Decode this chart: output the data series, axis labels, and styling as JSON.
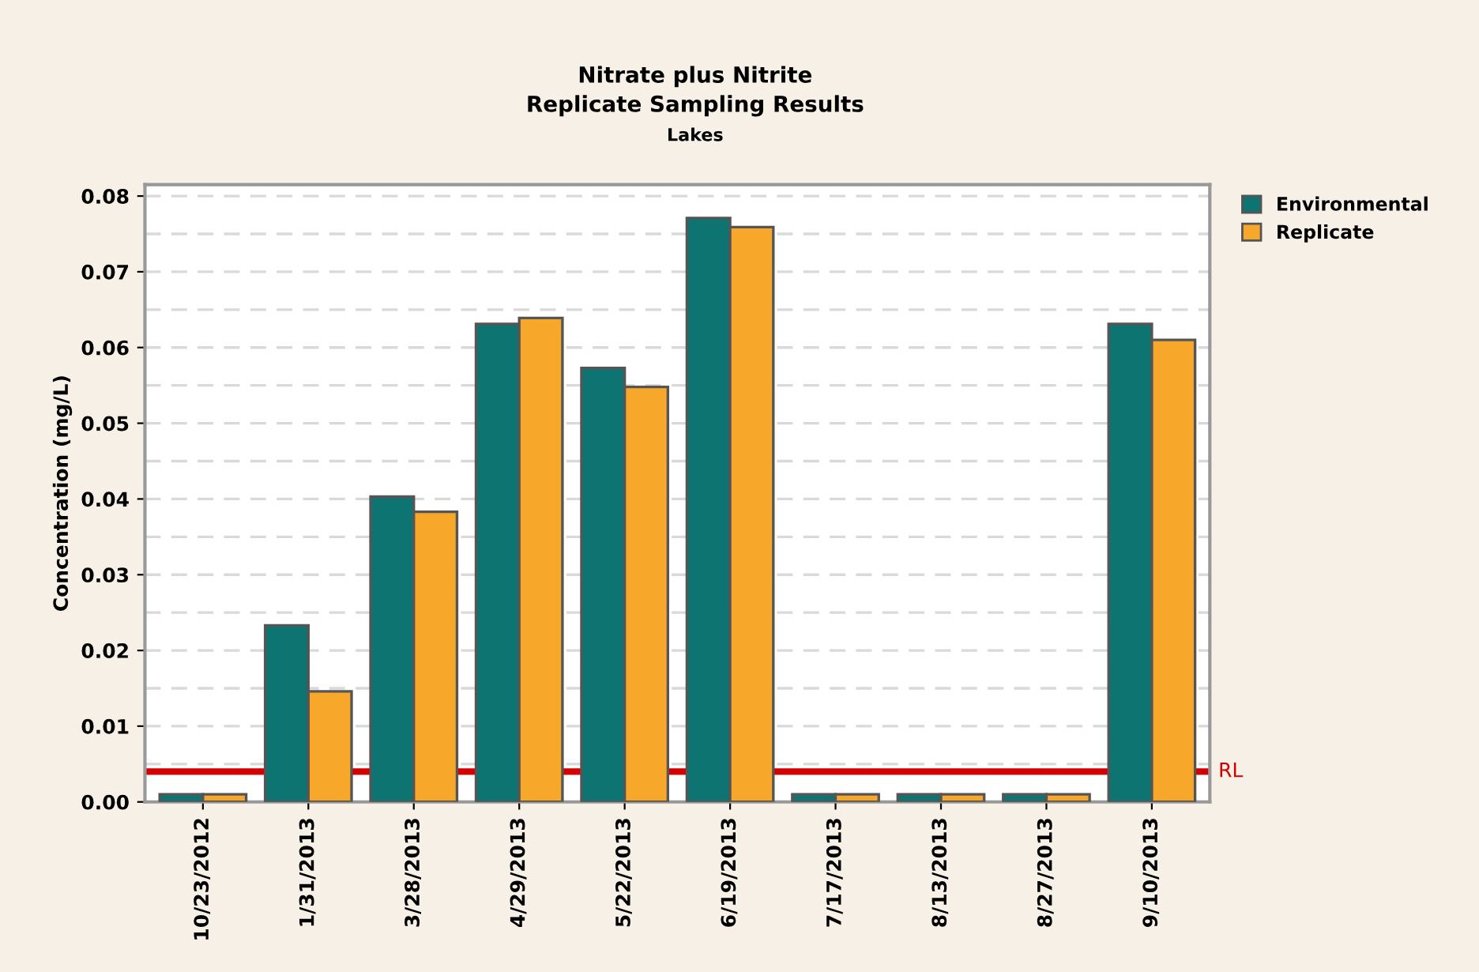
{
  "chart_data": {
    "type": "bar",
    "title": "Nitrate plus Nitrite",
    "subtitle": "Replicate Sampling Results",
    "annotations": [
      "Lakes"
    ],
    "ylabel": "Concentration (mg/L)",
    "categories": [
      "10/23/2012",
      "1/31/2013",
      "3/28/2013",
      "4/29/2013",
      "5/22/2013",
      "6/19/2013",
      "7/17/2013",
      "8/13/2013",
      "8/27/2013",
      "9/10/2013"
    ],
    "series": [
      {
        "name": "Environmental",
        "color": "#0e7472",
        "values": [
          0.001,
          0.0233,
          0.0403,
          0.0631,
          0.0573,
          0.0771,
          0.001,
          0.001,
          0.001,
          0.0631
        ]
      },
      {
        "name": "Replicate",
        "color": "#f7a72a",
        "values": [
          0.001,
          0.0146,
          0.0383,
          0.0639,
          0.0548,
          0.0759,
          0.001,
          0.001,
          0.001,
          0.061
        ]
      }
    ],
    "ylim": [
      0,
      0.0815
    ],
    "yticks": [
      {
        "value": 0,
        "label": "0.00"
      },
      {
        "value": 0.01,
        "label": "0.01"
      },
      {
        "value": 0.02,
        "label": "0.02"
      },
      {
        "value": 0.03,
        "label": "0.03"
      },
      {
        "value": 0.04,
        "label": "0.04"
      },
      {
        "value": 0.05,
        "label": "0.05"
      },
      {
        "value": 0.06,
        "label": "0.06"
      },
      {
        "value": 0.07,
        "label": "0.07"
      },
      {
        "value": 0.08,
        "label": "0.08"
      }
    ],
    "ref_lines": [
      {
        "axis": "y",
        "value": 0.004,
        "label": "RL",
        "color": "#d40000"
      }
    ],
    "grid": "y",
    "legend": "top right"
  }
}
